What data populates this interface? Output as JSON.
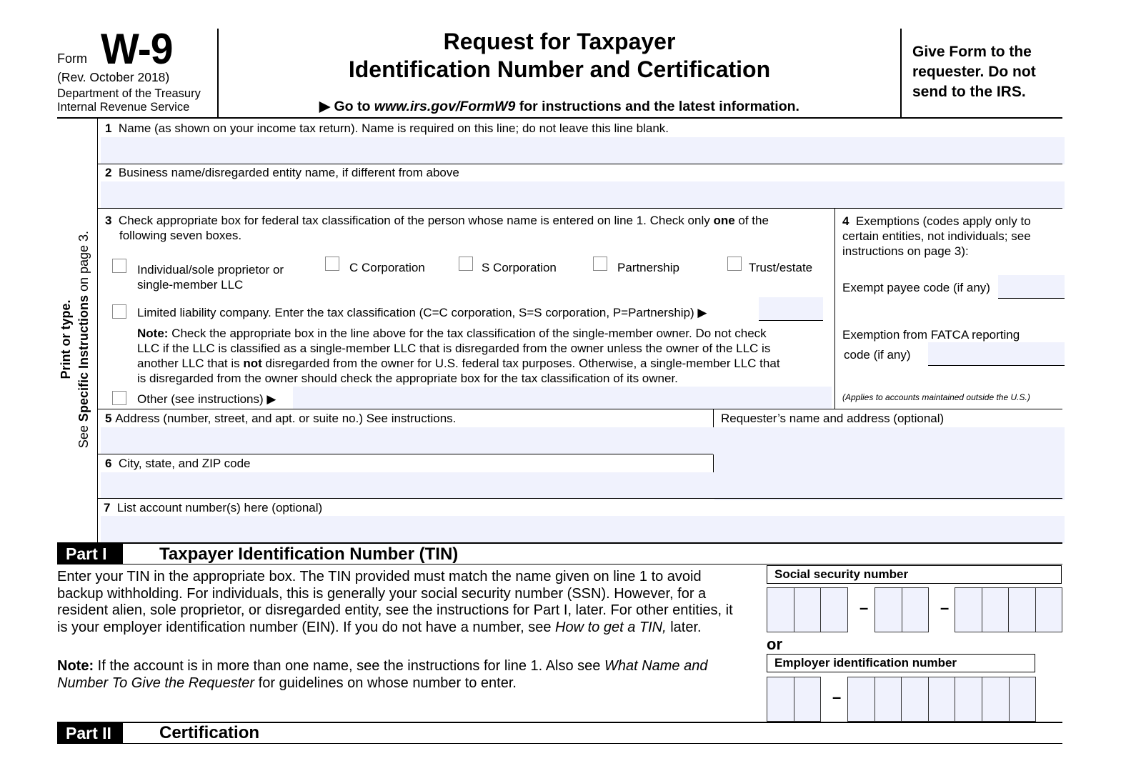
{
  "header": {
    "form_word": "Form",
    "form_number": "W-9",
    "revision": "(Rev. October 2018)",
    "department": "Department of the Treasury",
    "agency": "Internal Revenue Service",
    "title_line1": "Request for Taxpayer",
    "title_line2": "Identification Number and Certification",
    "goto_prefix": "▶ Go to ",
    "goto_url": "www.irs.gov/FormW9",
    "goto_suffix": " for instructions and the latest information.",
    "give_line1": "Give Form to the",
    "give_line2": "requester. Do not",
    "give_line3": "send to the IRS."
  },
  "side": {
    "line1": "Print or type.",
    "line2_prefix": "See ",
    "line2_bold": "Specific Instructions",
    "line2_suffix": " on page 3."
  },
  "lines": {
    "l1_num": "1",
    "l1_label": "Name (as shown on your income tax return). Name is required on this line; do not leave this line blank.",
    "l2_num": "2",
    "l2_label": "Business name/disregarded entity name, if different from above",
    "l3_num": "3",
    "l3_label_a": "Check appropriate box for federal tax classification of the person whose name is entered on line 1. Check only ",
    "l3_label_bold": "one",
    "l3_label_b": " of the",
    "l3_label_c": "following seven boxes.",
    "classifications": [
      {
        "label": "Individual/sole proprietor or",
        "label2": "single-member LLC",
        "checked": false
      },
      {
        "label": "C Corporation",
        "checked": false
      },
      {
        "label": "S Corporation",
        "checked": false
      },
      {
        "label": "Partnership",
        "checked": false
      },
      {
        "label": "Trust/estate",
        "checked": false
      }
    ],
    "llc_label": "Limited liability company. Enter the tax classification (C=C corporation, S=S corporation, P=Partnership) ▶",
    "llc_value": "",
    "note_bold": "Note:",
    "note_1": " Check the appropriate box in the line above for the tax classification of the single-member owner.  Do not check",
    "note_2": "LLC if the LLC is classified as a single-member LLC that is disregarded from the owner unless the owner of the LLC is",
    "note_3a": "another LLC that is ",
    "note_3_bold": "not",
    "note_3b": " disregarded from the owner for U.S. federal tax purposes. Otherwise, a single-member LLC that",
    "note_4": "is disregarded from the owner should check the appropriate box for the tax classification of its owner.",
    "other_label": "Other (see instructions) ▶",
    "other_value": "",
    "l4_num": "4",
    "l4_line1": "Exemptions (codes apply only to",
    "l4_line2": "certain entities, not individuals; see",
    "l4_line3": "instructions on page 3):",
    "exempt_payee_label": "Exempt payee code (if any)",
    "fatca_line1": "Exemption from FATCA reporting",
    "fatca_line2": "code (if any)",
    "fatca_note": "(Applies to accounts maintained outside the U.S.)",
    "l5_num": "5",
    "l5_label": "Address (number, street, and apt. or suite no.) See instructions.",
    "requester_label": "Requester’s name and address (optional)",
    "l6_num": "6",
    "l6_label": "City, state, and ZIP code",
    "l7_num": "7",
    "l7_label": "List account number(s) here (optional)",
    "values": {
      "name": "",
      "business": "",
      "address": "",
      "city": "",
      "requester": "",
      "account": "",
      "exempt_payee": "",
      "fatca": ""
    }
  },
  "part1": {
    "tag": "Part I",
    "title": "Taxpayer Identification Number (TIN)",
    "para_a": "Enter your TIN in the appropriate box. The TIN provided must match the name given on line 1 to avoid backup withholding. For individuals, this is generally your social security number (SSN). However, for a resident alien, sole proprietor, or disregarded entity, see the instructions for Part I, later. For other entities, it is your employer identification number (EIN). If you do not have a number, see ",
    "para_italic": "How to get a TIN,",
    "para_b": " later.",
    "note_bold": "Note:",
    "note_a": " If the account is in more than one name, see the instructions for line 1. Also see ",
    "note_italic": "What Name and Number To Give the Requester",
    "note_b": " for guidelines on whose number to enter.",
    "ssn_label": "Social security number",
    "or": "or",
    "ein_label": "Employer identification number",
    "dash": "–"
  },
  "part2": {
    "tag": "Part II",
    "title": "Certification"
  }
}
